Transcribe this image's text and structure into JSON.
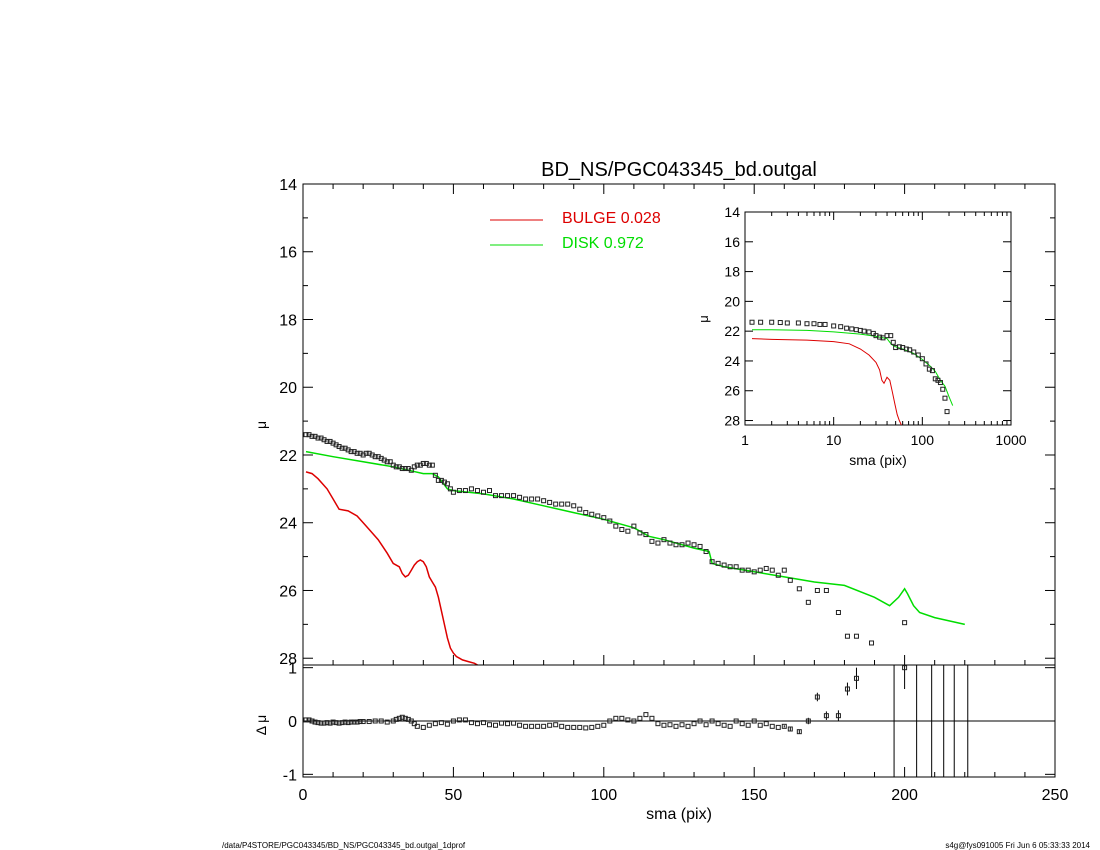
{
  "footer": {
    "left": "/data/P4STORE/PGC043345/BD_NS/PGC043345_bd.outgal_1dprof",
    "right": "s4g@fys091005  Fri Jun  6 05:33:33 2014"
  },
  "chart_data": [
    {
      "panel": "main",
      "type": "line",
      "title": "BD_NS/PGC043345_bd.outgal",
      "xlabel": "",
      "ylabel": "μ",
      "xlim": [
        0,
        250
      ],
      "ylim": [
        28.2,
        14
      ],
      "yticks": [
        14,
        16,
        18,
        20,
        22,
        24,
        26,
        28
      ],
      "legend": {
        "placement": "top-center",
        "entries": [
          {
            "label": "BULGE  0.028",
            "color": "#dd0000"
          },
          {
            "label": "DISK  0.972",
            "color": "#00dd00"
          }
        ]
      },
      "series": [
        {
          "name": "BULGE  0.028",
          "style": "line",
          "color": "#dd0000",
          "x": [
            1,
            3,
            5,
            8,
            10,
            12,
            15,
            18,
            20,
            22,
            25,
            28,
            30,
            32,
            33,
            34,
            35,
            36,
            37,
            38,
            39,
            40,
            41,
            42,
            43,
            44,
            45,
            46,
            47,
            48,
            49,
            50,
            51,
            52,
            53,
            55,
            57,
            58
          ],
          "y": [
            22.5,
            22.55,
            22.7,
            23.0,
            23.3,
            23.6,
            23.65,
            23.8,
            24.0,
            24.2,
            24.5,
            24.9,
            25.2,
            25.3,
            25.5,
            25.6,
            25.55,
            25.4,
            25.25,
            25.15,
            25.1,
            25.15,
            25.3,
            25.6,
            25.75,
            25.9,
            26.2,
            26.6,
            27.0,
            27.4,
            27.7,
            27.85,
            27.95,
            28.0,
            28.05,
            28.1,
            28.15,
            28.2
          ]
        },
        {
          "name": "DISK  0.972",
          "style": "line",
          "color": "#00dd00",
          "x": [
            1,
            10,
            20,
            30,
            35,
            40,
            43,
            45,
            48,
            50,
            55,
            60,
            70,
            80,
            90,
            100,
            110,
            115,
            120,
            130,
            135,
            136,
            140,
            150,
            160,
            170,
            180,
            190,
            195,
            198,
            200,
            201,
            203,
            205,
            210,
            220
          ],
          "y": [
            21.9,
            22.05,
            22.2,
            22.35,
            22.45,
            22.55,
            22.55,
            22.65,
            23.0,
            23.05,
            23.1,
            23.15,
            23.3,
            23.5,
            23.7,
            23.9,
            24.15,
            24.4,
            24.5,
            24.75,
            24.85,
            25.2,
            25.3,
            25.45,
            25.6,
            25.75,
            25.85,
            26.2,
            26.45,
            26.2,
            25.95,
            26.1,
            26.45,
            26.65,
            26.8,
            27.0
          ]
        },
        {
          "name": "",
          "style": "open-squares",
          "color": "#000000",
          "x": [
            1,
            2,
            3,
            4,
            5,
            6,
            7,
            8,
            9,
            10,
            11,
            12,
            13,
            14,
            15,
            16,
            17,
            18,
            19,
            20,
            21,
            22,
            23,
            24,
            25,
            26,
            27,
            28,
            29,
            30,
            31,
            32,
            33,
            34,
            35,
            36,
            37,
            38,
            39,
            40,
            41,
            42,
            43,
            44,
            45,
            46,
            47,
            48,
            49,
            50,
            52,
            54,
            56,
            58,
            60,
            62,
            64,
            66,
            68,
            70,
            72,
            74,
            76,
            78,
            80,
            82,
            84,
            86,
            88,
            90,
            92,
            94,
            96,
            98,
            100,
            102,
            104,
            106,
            108,
            110,
            112,
            114,
            116,
            118,
            120,
            122,
            124,
            126,
            128,
            130,
            132,
            134,
            136,
            138,
            140,
            142,
            144,
            146,
            148,
            150,
            152,
            154,
            156,
            158,
            160,
            162,
            165,
            168,
            171,
            174,
            178,
            181,
            184,
            189,
            200
          ],
          "y": [
            21.4,
            21.4,
            21.45,
            21.45,
            21.5,
            21.5,
            21.55,
            21.6,
            21.6,
            21.65,
            21.7,
            21.75,
            21.8,
            21.8,
            21.85,
            21.9,
            21.9,
            21.95,
            21.95,
            22.0,
            21.95,
            21.95,
            22.0,
            22.05,
            22.05,
            22.1,
            22.15,
            22.2,
            22.2,
            22.3,
            22.35,
            22.35,
            22.4,
            22.4,
            22.4,
            22.45,
            22.35,
            22.3,
            22.3,
            22.25,
            22.25,
            22.3,
            22.3,
            22.6,
            22.75,
            22.75,
            22.8,
            22.85,
            23.0,
            23.1,
            23.05,
            23.05,
            23.0,
            23.05,
            23.1,
            23.05,
            23.2,
            23.2,
            23.2,
            23.2,
            23.25,
            23.3,
            23.3,
            23.3,
            23.35,
            23.4,
            23.45,
            23.45,
            23.45,
            23.5,
            23.6,
            23.7,
            23.75,
            23.8,
            23.85,
            23.95,
            24.1,
            24.2,
            24.25,
            24.1,
            24.3,
            24.35,
            24.55,
            24.6,
            24.5,
            24.6,
            24.65,
            24.65,
            24.6,
            24.65,
            24.7,
            24.85,
            25.15,
            25.2,
            25.25,
            25.3,
            25.3,
            25.4,
            25.4,
            25.45,
            25.4,
            25.35,
            25.4,
            25.55,
            25.4,
            25.7,
            25.95,
            26.35,
            26.0,
            26.0,
            26.65,
            27.35,
            27.35,
            27.55,
            26.95
          ]
        }
      ]
    },
    {
      "panel": "residual",
      "type": "scatter",
      "xlabel": "sma (pix)",
      "ylabel": "Δ μ",
      "xlim": [
        0,
        250
      ],
      "ylim": [
        -1.05,
        1.05
      ],
      "xticks": [
        0,
        50,
        100,
        150,
        200,
        250
      ],
      "yticks": [
        -1,
        0,
        1
      ],
      "reference_line": 0,
      "series": [
        {
          "name": "",
          "style": "open-squares-errorbars",
          "color": "#000000",
          "x": [
            1,
            2,
            3,
            4,
            5,
            6,
            7,
            8,
            9,
            10,
            11,
            12,
            13,
            14,
            15,
            16,
            17,
            18,
            19,
            20,
            22,
            24,
            26,
            28,
            30,
            31,
            32,
            33,
            34,
            35,
            36,
            37,
            38,
            40,
            42,
            44,
            46,
            48,
            50,
            52,
            54,
            56,
            58,
            60,
            62,
            64,
            66,
            68,
            70,
            72,
            74,
            76,
            78,
            80,
            82,
            84,
            86,
            88,
            90,
            92,
            94,
            96,
            98,
            100,
            102,
            104,
            106,
            108,
            110,
            112,
            114,
            116,
            118,
            120,
            122,
            124,
            126,
            128,
            130,
            132,
            134,
            136,
            138,
            140,
            142,
            144,
            146,
            148,
            150,
            152,
            154,
            156,
            158,
            160,
            162,
            165,
            168,
            171,
            174,
            178,
            181,
            184,
            200
          ],
          "y": [
            0.02,
            0.02,
            0.0,
            -0.02,
            -0.03,
            -0.04,
            -0.04,
            -0.03,
            -0.04,
            -0.02,
            -0.03,
            -0.04,
            -0.03,
            -0.02,
            -0.03,
            -0.02,
            -0.02,
            -0.02,
            -0.01,
            -0.01,
            -0.01,
            0.0,
            0.0,
            -0.02,
            0.0,
            0.03,
            0.05,
            0.07,
            0.05,
            0.03,
            0.0,
            -0.05,
            -0.1,
            -0.12,
            -0.08,
            -0.05,
            -0.03,
            -0.06,
            0.0,
            0.02,
            0.02,
            -0.03,
            -0.05,
            -0.03,
            -0.07,
            -0.08,
            -0.04,
            -0.05,
            -0.04,
            -0.08,
            -0.1,
            -0.1,
            -0.1,
            -0.1,
            -0.08,
            -0.07,
            -0.1,
            -0.12,
            -0.12,
            -0.12,
            -0.13,
            -0.12,
            -0.1,
            -0.08,
            0.0,
            0.05,
            0.05,
            0.02,
            0.0,
            0.05,
            0.12,
            0.05,
            -0.05,
            -0.08,
            -0.07,
            -0.1,
            -0.07,
            -0.1,
            -0.05,
            0.0,
            -0.07,
            0.0,
            -0.05,
            -0.08,
            -0.1,
            0.0,
            -0.05,
            -0.08,
            0.0,
            -0.08,
            -0.05,
            -0.1,
            -0.12,
            -0.1,
            -0.15,
            -0.2,
            0.0,
            0.45,
            0.1,
            0.1,
            0.6,
            0.8,
            1.0
          ],
          "yerr": [
            0.01,
            0.01,
            0.01,
            0.01,
            0.01,
            0.01,
            0.01,
            0.01,
            0.01,
            0.01,
            0.01,
            0.01,
            0.01,
            0.01,
            0.01,
            0.01,
            0.01,
            0.01,
            0.01,
            0.01,
            0.01,
            0.01,
            0.01,
            0.01,
            0.01,
            0.01,
            0.01,
            0.01,
            0.01,
            0.01,
            0.01,
            0.01,
            0.01,
            0.01,
            0.01,
            0.01,
            0.01,
            0.01,
            0.01,
            0.01,
            0.01,
            0.01,
            0.01,
            0.01,
            0.01,
            0.01,
            0.01,
            0.01,
            0.01,
            0.01,
            0.01,
            0.01,
            0.01,
            0.01,
            0.01,
            0.01,
            0.01,
            0.01,
            0.01,
            0.01,
            0.01,
            0.01,
            0.01,
            0.01,
            0.01,
            0.01,
            0.01,
            0.01,
            0.01,
            0.01,
            0.01,
            0.01,
            0.01,
            0.01,
            0.01,
            0.01,
            0.01,
            0.01,
            0.01,
            0.01,
            0.01,
            0.01,
            0.01,
            0.01,
            0.01,
            0.01,
            0.01,
            0.01,
            0.01,
            0.01,
            0.01,
            0.01,
            0.01,
            0.02,
            0.03,
            0.04,
            0.06,
            0.08,
            0.08,
            0.1,
            0.12,
            0.2,
            0.4
          ]
        },
        {
          "name": "",
          "style": "vertical-lines",
          "color": "#000000",
          "x": [
            196.5,
            204,
            209,
            213,
            216.5,
            221
          ]
        }
      ]
    },
    {
      "panel": "inset",
      "type": "line",
      "xlabel": "sma (pix)",
      "ylabel": "μ",
      "xscale": "log",
      "xlim": [
        1,
        1000
      ],
      "ylim": [
        28.3,
        14
      ],
      "xticks": [
        1,
        10,
        100,
        1000
      ],
      "yticks": [
        14,
        16,
        18,
        20,
        22,
        24,
        26,
        28
      ],
      "series": [
        {
          "name": "BULGE  0.028",
          "style": "line",
          "color": "#dd0000",
          "x": [
            1.2,
            2,
            5,
            10,
            15,
            20,
            25,
            30,
            33,
            35,
            37,
            40,
            43,
            46,
            49,
            52,
            55,
            58
          ],
          "y": [
            22.5,
            22.55,
            22.6,
            22.7,
            22.85,
            23.2,
            23.6,
            24.1,
            24.6,
            25.3,
            25.5,
            25.1,
            25.3,
            26.1,
            26.9,
            27.6,
            28.0,
            28.3
          ]
        },
        {
          "name": "DISK  0.972",
          "style": "line",
          "color": "#00dd00",
          "x": [
            1.2,
            2,
            5,
            10,
            20,
            30,
            40,
            45,
            50,
            60,
            80,
            100,
            120,
            140,
            160,
            180,
            200,
            220
          ],
          "y": [
            21.9,
            21.9,
            21.95,
            22.05,
            22.2,
            22.35,
            22.5,
            22.9,
            23.05,
            23.2,
            23.5,
            23.9,
            24.3,
            24.7,
            25.3,
            25.7,
            26.4,
            27.0
          ]
        },
        {
          "name": "",
          "style": "open-squares",
          "color": "#000000",
          "x": [
            1.2,
            1.5,
            2,
            2.5,
            3,
            4,
            5,
            6,
            7,
            8,
            10,
            12,
            14,
            16,
            18,
            20,
            22,
            25,
            28,
            30,
            33,
            36,
            40,
            44,
            47,
            50,
            55,
            60,
            66,
            72,
            80,
            90,
            100,
            110,
            120,
            130,
            140,
            150,
            160,
            170,
            180,
            190
          ],
          "y": [
            21.4,
            21.4,
            21.4,
            21.42,
            21.45,
            21.45,
            21.5,
            21.5,
            21.55,
            21.55,
            21.65,
            21.7,
            21.8,
            21.85,
            21.9,
            21.95,
            22.0,
            22.05,
            22.15,
            22.3,
            22.4,
            22.45,
            22.3,
            22.3,
            22.75,
            23.1,
            23.05,
            23.1,
            23.2,
            23.25,
            23.4,
            23.6,
            23.85,
            24.2,
            24.55,
            24.65,
            25.2,
            25.3,
            25.45,
            25.9,
            26.5,
            27.4
          ]
        }
      ]
    }
  ]
}
